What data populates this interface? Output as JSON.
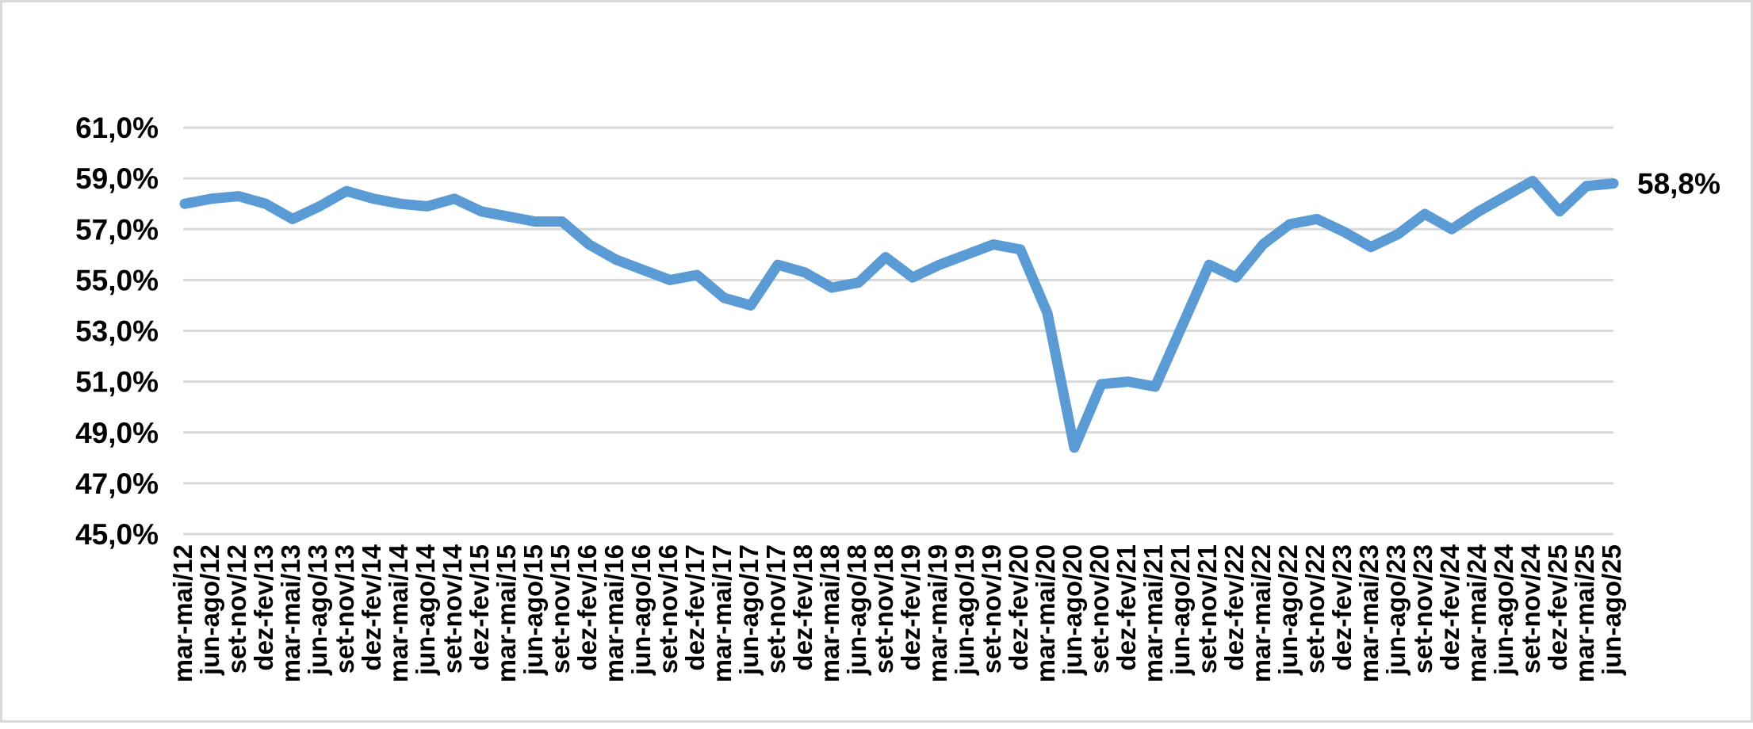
{
  "chart_data": {
    "type": "line",
    "title": "",
    "legend_position": "none",
    "grid": "horizontal",
    "line_color": "#5B9BD5",
    "gridline_color": "#D9D9D9",
    "text_color": "#000000",
    "background_color": "#FFFFFF",
    "end_label": "58,8%",
    "y_axis": {
      "min": 45,
      "max": 61,
      "step": 2,
      "tick_labels": [
        "45,0%",
        "47,0%",
        "49,0%",
        "51,0%",
        "53,0%",
        "55,0%",
        "57,0%",
        "59,0%",
        "61,0%"
      ]
    },
    "categories": [
      "mar-mai/12",
      "jun-ago/12",
      "set-nov/12",
      "dez-fev/13",
      "mar-mai/13",
      "jun-ago/13",
      "set-nov/13",
      "dez-fev/14",
      "mar-mai/14",
      "jun-ago/14",
      "set-nov/14",
      "dez-fev/15",
      "mar-mai/15",
      "jun-ago/15",
      "set-nov/15",
      "dez-fev/16",
      "mar-mai/16",
      "jun-ago/16",
      "set-nov/16",
      "dez-fev/17",
      "mar-mai/17",
      "jun-ago/17",
      "set-nov/17",
      "dez-fev/18",
      "mar-mai/18",
      "jun-ago/18",
      "set-nov/18",
      "dez-fev/19",
      "mar-mai/19",
      "jun-ago/19",
      "set-nov/19",
      "dez-fev/20",
      "mar-mai/20",
      "jun-ago/20",
      "set-nov/20",
      "dez-fev/21",
      "mar-mai/21",
      "jun-ago/21",
      "set-nov/21",
      "dez-fev/22",
      "mar-mai/22",
      "jun-ago/22",
      "set-nov/22",
      "dez-fev/23",
      "mar-mai/23",
      "jun-ago/23",
      "set-nov/23",
      "dez-fev/24",
      "mar-mai/24",
      "jun-ago/24",
      "set-nov/24",
      "dez-fev/25",
      "mar-mai/25",
      "jun-ago/25"
    ],
    "values": [
      58.0,
      58.2,
      58.3,
      58.0,
      57.4,
      57.9,
      58.5,
      58.2,
      58.0,
      57.9,
      58.2,
      57.7,
      57.5,
      57.3,
      57.3,
      56.4,
      55.8,
      55.4,
      55.0,
      55.2,
      54.3,
      54.0,
      55.6,
      55.3,
      54.7,
      54.9,
      55.9,
      55.1,
      55.6,
      56.0,
      56.4,
      56.2,
      53.7,
      48.4,
      50.9,
      51.0,
      50.8,
      53.2,
      55.6,
      55.1,
      56.4,
      57.2,
      57.4,
      56.9,
      56.3,
      56.8,
      57.6,
      57.0,
      57.7,
      58.3,
      58.9,
      57.7,
      58.7,
      58.8
    ]
  }
}
